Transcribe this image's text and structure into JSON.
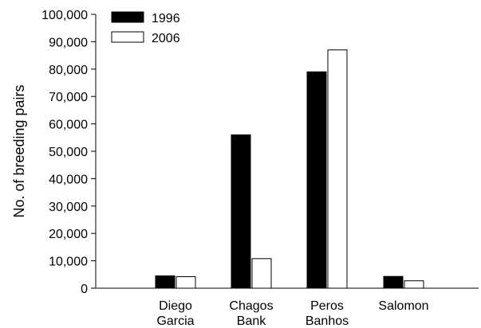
{
  "chart_data": {
    "type": "bar",
    "categories": [
      [
        "Diego",
        "Garcia"
      ],
      [
        "Chagos",
        "Bank"
      ],
      [
        "Peros",
        "Banhos"
      ],
      [
        "Salomon"
      ]
    ],
    "series": [
      {
        "name": "1996",
        "color": "#000000",
        "values": [
          4500,
          56000,
          79000,
          4300
        ]
      },
      {
        "name": "2006",
        "color": "#ffffff",
        "values": [
          4200,
          10800,
          87000,
          2700
        ]
      }
    ],
    "ylabel": "No. of breeding pairs",
    "xlabel": "",
    "ylim": [
      0,
      100000
    ],
    "yticks": [
      "0",
      "10,000",
      "20,000",
      "30,000",
      "40,000",
      "50,000",
      "60,000",
      "70,000",
      "80,000",
      "90,000",
      "100,000"
    ],
    "legend_position": "top-left",
    "grid": false
  }
}
